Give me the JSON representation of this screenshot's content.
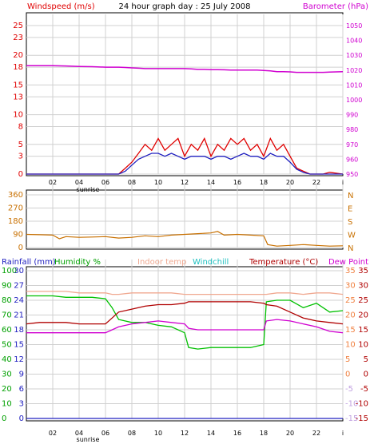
{
  "header": {
    "title": "24 hour graph day : 25 July 2008",
    "left_label": "Windspeed (m/s)",
    "right_label": "Barometer (hPa)"
  },
  "x_axis": {
    "ticks": [
      "02",
      "04",
      "06",
      "08",
      "10",
      "12",
      "14",
      "16",
      "18",
      "20",
      "22",
      "i"
    ],
    "sunrise_label": "sunrise"
  },
  "bottom_legend": {
    "rainfall": "Rainfall (mm)",
    "humidity": "Humidity %",
    "indoor": "Indoor temp",
    "windchill": "Windchill",
    "temperature": "Temperature (°C)",
    "dewpoint": "Dew Point"
  },
  "colors": {
    "windspeed": "#e00000",
    "wind_avg": "#2020c0",
    "barometer": "#d000d0",
    "direction": "#c87000",
    "humidity": "#00c000",
    "indoor": "#f0a890",
    "temperature": "#b00000",
    "dewpoint": "#d000d0",
    "rainfall": "#2020c0",
    "grid": "#d0d0d0"
  },
  "chart_data": [
    {
      "type": "line",
      "panel": "wind_baro",
      "x_hours": [
        0,
        1,
        2,
        3,
        4,
        5,
        6,
        7,
        7.5,
        8,
        8.5,
        9,
        9.5,
        10,
        10.5,
        11,
        11.5,
        12,
        12.5,
        13,
        13.5,
        14,
        14.5,
        15,
        15.5,
        16,
        16.5,
        17,
        17.5,
        18,
        18.5,
        19,
        19.5,
        20,
        20.5,
        21,
        21.5,
        22,
        22.5,
        23,
        24
      ],
      "yleft_ticks": [
        0,
        3,
        5,
        8,
        10,
        13,
        15,
        18,
        20,
        23,
        25
      ],
      "yleft_lim": [
        0,
        25
      ],
      "yright_ticks": [
        950,
        960,
        970,
        980,
        990,
        1000,
        1010,
        1020,
        1030,
        1040,
        1050
      ],
      "yright_lim": [
        950,
        1050
      ],
      "series": [
        {
          "key": "windspeed",
          "axis": "left",
          "values": [
            0,
            0,
            0,
            0,
            0,
            0,
            0,
            0,
            1,
            2,
            3.5,
            5,
            4,
            6,
            4,
            5,
            6,
            3,
            5,
            4,
            6,
            3,
            5,
            4,
            6,
            5,
            6,
            4,
            5,
            3,
            6,
            4,
            5,
            3,
            1,
            0.5,
            0,
            0,
            0,
            0.3,
            0
          ]
        },
        {
          "key": "wind_avg",
          "axis": "left",
          "values": [
            0,
            0,
            0,
            0,
            0,
            0,
            0,
            0,
            0.5,
            1.5,
            2.5,
            3,
            3.5,
            3.5,
            3,
            3.5,
            3,
            2.5,
            3,
            3,
            3,
            2.5,
            3,
            3,
            2.5,
            3,
            3.5,
            3,
            3,
            2.5,
            3.5,
            3,
            3,
            2,
            0.8,
            0.3,
            0,
            0,
            0,
            0,
            0
          ]
        },
        {
          "key": "barometer",
          "axis": "right",
          "values": [
            1023,
            1023,
            1023,
            1022.8,
            1022.5,
            1022.3,
            1022,
            1022,
            1021.8,
            1021.5,
            1021.3,
            1021,
            1021,
            1021,
            1021,
            1021,
            1021,
            1021,
            1020.8,
            1020.5,
            1020.5,
            1020.3,
            1020.3,
            1020.2,
            1020,
            1020,
            1020,
            1020,
            1020,
            1019.8,
            1019.5,
            1019,
            1019,
            1018.8,
            1018.5,
            1018.5,
            1018.5,
            1018.5,
            1018.5,
            1018.7,
            1019
          ]
        }
      ]
    },
    {
      "type": "line",
      "panel": "wind_direction",
      "x_hours": [
        0,
        1,
        2,
        2.5,
        3,
        4,
        5,
        6,
        7,
        8,
        9,
        10,
        11,
        12,
        13,
        14,
        14.5,
        15,
        16,
        17,
        18,
        18.3,
        19,
        20,
        21,
        22,
        23,
        24
      ],
      "y_ticks": [
        0,
        90,
        180,
        270,
        360
      ],
      "y_lim": [
        0,
        360
      ],
      "y_right_labels": [
        "N",
        "W",
        "S",
        "E",
        "N"
      ],
      "series": [
        {
          "key": "direction",
          "values": [
            90,
            88,
            85,
            60,
            75,
            70,
            72,
            75,
            65,
            70,
            80,
            75,
            85,
            90,
            95,
            100,
            110,
            85,
            90,
            85,
            80,
            20,
            10,
            15,
            20,
            15,
            10,
            12
          ]
        }
      ]
    },
    {
      "type": "line",
      "panel": "temp_humidity",
      "x_hours": [
        0,
        1,
        2,
        3,
        4,
        5,
        6,
        6.5,
        7,
        8,
        9,
        10,
        11,
        12,
        12.3,
        13,
        14,
        15,
        16,
        17,
        18,
        18.2,
        19,
        20,
        21,
        22,
        23,
        24
      ],
      "yleft_ticks": [
        0,
        10,
        20,
        30,
        40,
        50,
        60,
        70,
        80,
        90,
        100
      ],
      "yleft_lim": [
        0,
        100
      ],
      "rain_ticks": [
        0,
        3,
        6,
        9,
        12,
        15,
        18,
        21,
        24,
        27,
        30
      ],
      "yright_ticks": [
        -15,
        -10,
        -5,
        0,
        5,
        10,
        15,
        20,
        25,
        30,
        35
      ],
      "yright_lim": [
        -15,
        35
      ],
      "series": [
        {
          "key": "humidity",
          "axis": "left",
          "values": [
            83,
            83,
            83,
            82,
            82,
            82,
            81,
            75,
            67,
            65,
            65,
            63,
            62,
            58,
            48,
            47,
            48,
            48,
            48,
            48,
            50,
            79,
            80,
            80,
            75,
            78,
            72,
            73
          ]
        },
        {
          "key": "indoor",
          "axis": "right",
          "values": [
            28,
            28,
            28,
            28,
            27.5,
            27.5,
            27.5,
            27,
            27,
            27.5,
            27.5,
            27.5,
            27.5,
            27,
            27,
            27,
            27,
            27,
            27,
            27,
            27,
            27,
            27.5,
            27.5,
            27,
            27.5,
            27.5,
            27
          ]
        },
        {
          "key": "temperature",
          "axis": "right",
          "values": [
            17,
            17.5,
            17.5,
            17.5,
            17,
            17,
            17,
            19,
            21,
            22,
            23,
            23.5,
            23.5,
            24,
            24.5,
            24.5,
            24.5,
            24.5,
            24.5,
            24.5,
            24,
            23.5,
            23,
            21,
            19,
            18,
            17.5,
            17
          ]
        },
        {
          "key": "dewpoint",
          "axis": "right",
          "values": [
            14,
            14,
            14,
            14,
            14,
            14,
            14,
            15,
            16,
            17,
            17.5,
            18,
            17.5,
            17,
            15.5,
            15,
            15,
            15,
            15,
            15,
            15,
            18,
            18.5,
            18,
            17,
            16,
            14.5,
            14
          ]
        },
        {
          "key": "rainfall",
          "axis": "rain",
          "values": [
            0,
            0,
            0,
            0,
            0,
            0,
            0,
            0,
            0,
            0,
            0,
            0,
            0,
            0,
            0,
            0,
            0,
            0,
            0,
            0,
            0,
            0,
            0,
            0,
            0,
            0,
            0,
            0
          ]
        }
      ]
    }
  ]
}
